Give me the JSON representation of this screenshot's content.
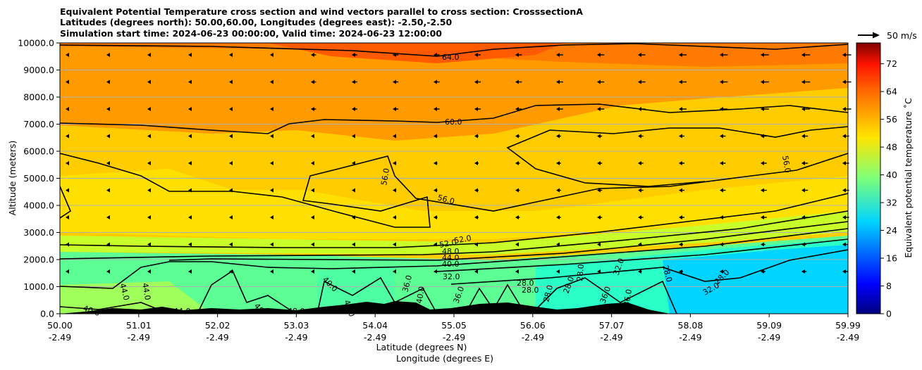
{
  "chart_data": {
    "type": "heatmap",
    "title_lines": [
      "Equivalent Potential Temperature cross section and wind vectors parallel to cross section: CrosssectionA",
      "Latitudes (degrees north): 50.00,60.00, Longitudes (degrees east): -2.50,-2.50",
      "Simulation start time: 2024-06-23 00:00:00, Valid time: 2024-06-23 12:00:00"
    ],
    "ylabel": "Altitude (meters)",
    "xlabel_lat": "Latitude (degrees N)",
    "xlabel_lon": "Longitude (degrees E)",
    "ylim": [
      0,
      10000
    ],
    "y_ticks": [
      "0.0",
      "1000.0",
      "2000.0",
      "3000.0",
      "4000.0",
      "5000.0",
      "6000.0",
      "7000.0",
      "8000.0",
      "9000.0",
      "10000.0"
    ],
    "x_ticks_lat": [
      "50.00",
      "51.01",
      "52.02",
      "53.03",
      "54.04",
      "55.05",
      "56.06",
      "57.07",
      "58.08",
      "59.09",
      "59.99"
    ],
    "x_ticks_lon": [
      "-2.49",
      "-2.49",
      "-2.49",
      "-2.49",
      "-2.49",
      "-2.49",
      "-2.49",
      "-2.49",
      "-2.49",
      "-2.49",
      "-2.49"
    ],
    "grid": "horizontal",
    "colorbar": {
      "label": "Equivalent potential temperature ˚C",
      "ticks": [
        "0",
        "8",
        "16",
        "24",
        "32",
        "40",
        "48",
        "56",
        "64",
        "72"
      ],
      "range": [
        0,
        78
      ],
      "colormap": "jet"
    },
    "quiver_key": "50 m/s",
    "contour_levels": [
      {
        "label": "64.0"
      },
      {
        "label": "60.0"
      },
      {
        "label": "56.0"
      },
      {
        "label": "56.0"
      },
      {
        "label": "56.0"
      },
      {
        "label": "56.0"
      },
      {
        "label": "52.0"
      },
      {
        "label": "52.0"
      },
      {
        "label": "48.0"
      },
      {
        "label": "44.0"
      },
      {
        "label": "40.0"
      },
      {
        "label": "32.0"
      },
      {
        "label": "40.0"
      },
      {
        "label": "36.0"
      },
      {
        "label": "40.0"
      },
      {
        "label": "36.0"
      },
      {
        "label": "28.0"
      },
      {
        "label": "28.0"
      },
      {
        "label": "28.0"
      },
      {
        "label": "28.0"
      },
      {
        "label": "28.0"
      },
      {
        "label": "32.0"
      },
      {
        "label": "36.0"
      },
      {
        "label": "36.0"
      },
      {
        "label": "28.0"
      },
      {
        "label": "32.0"
      },
      {
        "label": "28.0"
      },
      {
        "label": "44.0"
      },
      {
        "label": "44.0"
      },
      {
        "label": "40.0"
      },
      {
        "label": "44.0"
      },
      {
        "label": "48"
      },
      {
        "label": "48.0"
      },
      {
        "label": "40.0"
      }
    ]
  }
}
